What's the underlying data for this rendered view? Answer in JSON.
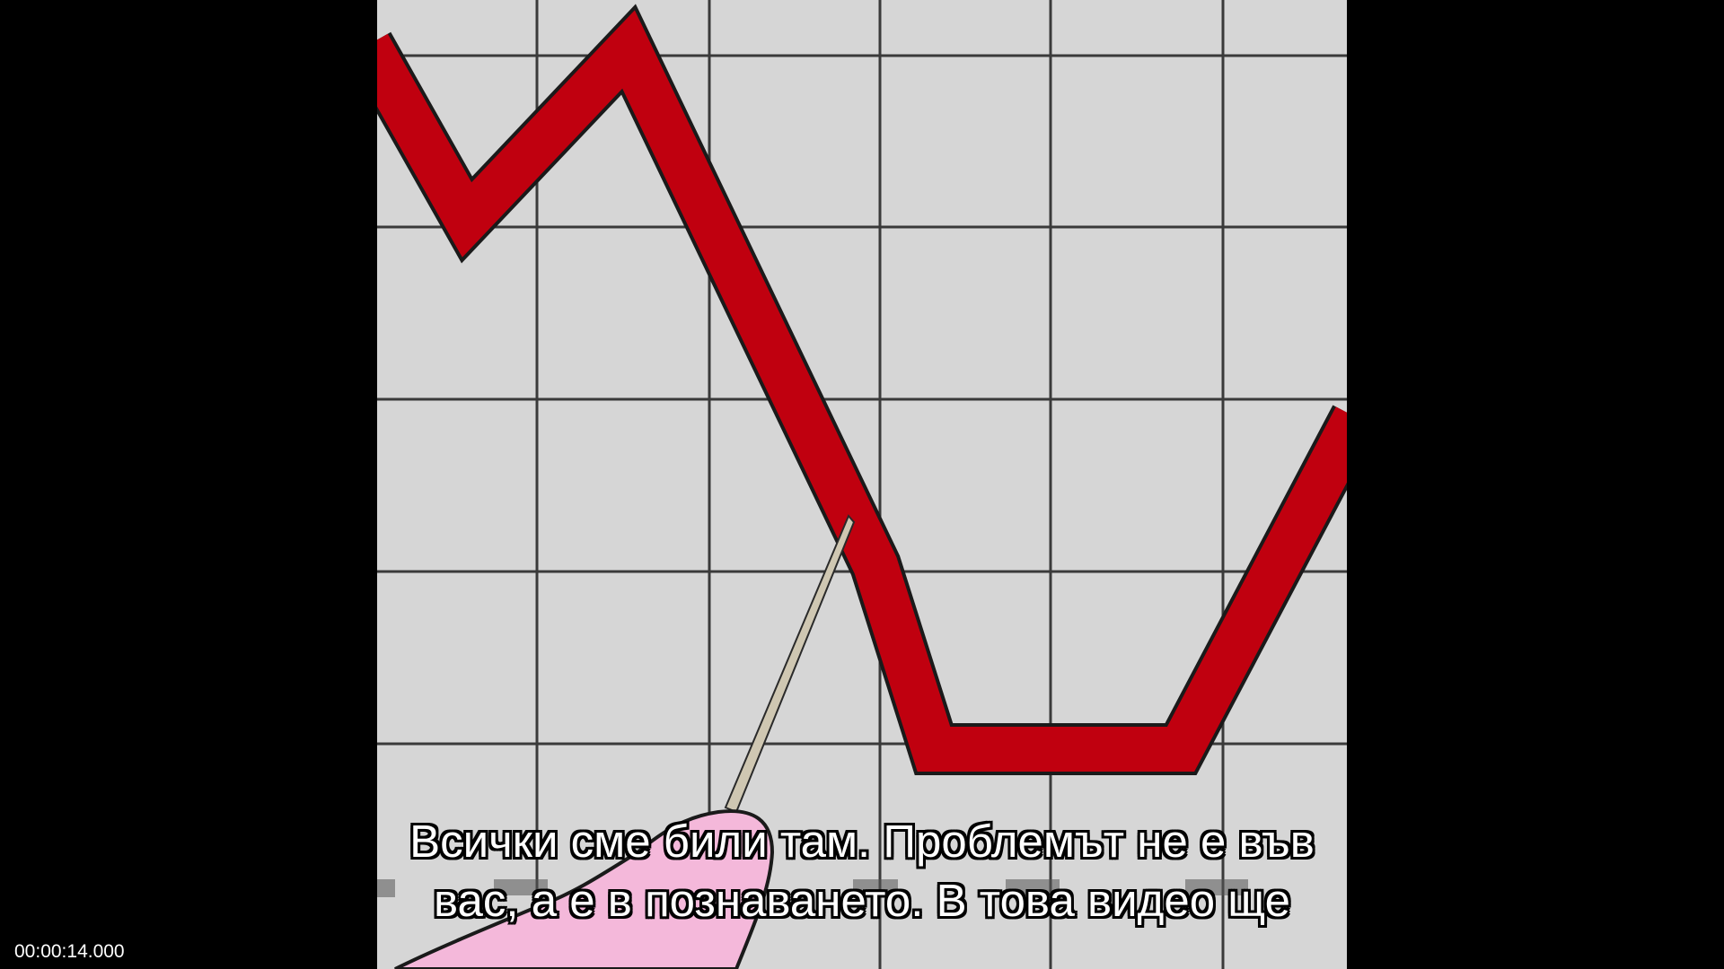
{
  "video": {
    "subtitle_lines": [
      "Всички сме били там. Проблемът не е във",
      "вас, а е в познаването. В това видео ще"
    ],
    "timestamp": "00:00:14.000"
  },
  "colors": {
    "background": "#000000",
    "chart_paper": "#d6d6d6",
    "grid_line": "#3a3a3a",
    "trend_line": "#c0000f",
    "pointer_stick": "#cfc7b2",
    "hand": "#f4b8da"
  },
  "icons": {
    "chart_scene": "falling-line-graph-illustration",
    "pointer": "pointer-stick-icon",
    "hand": "pink-hand-icon"
  }
}
